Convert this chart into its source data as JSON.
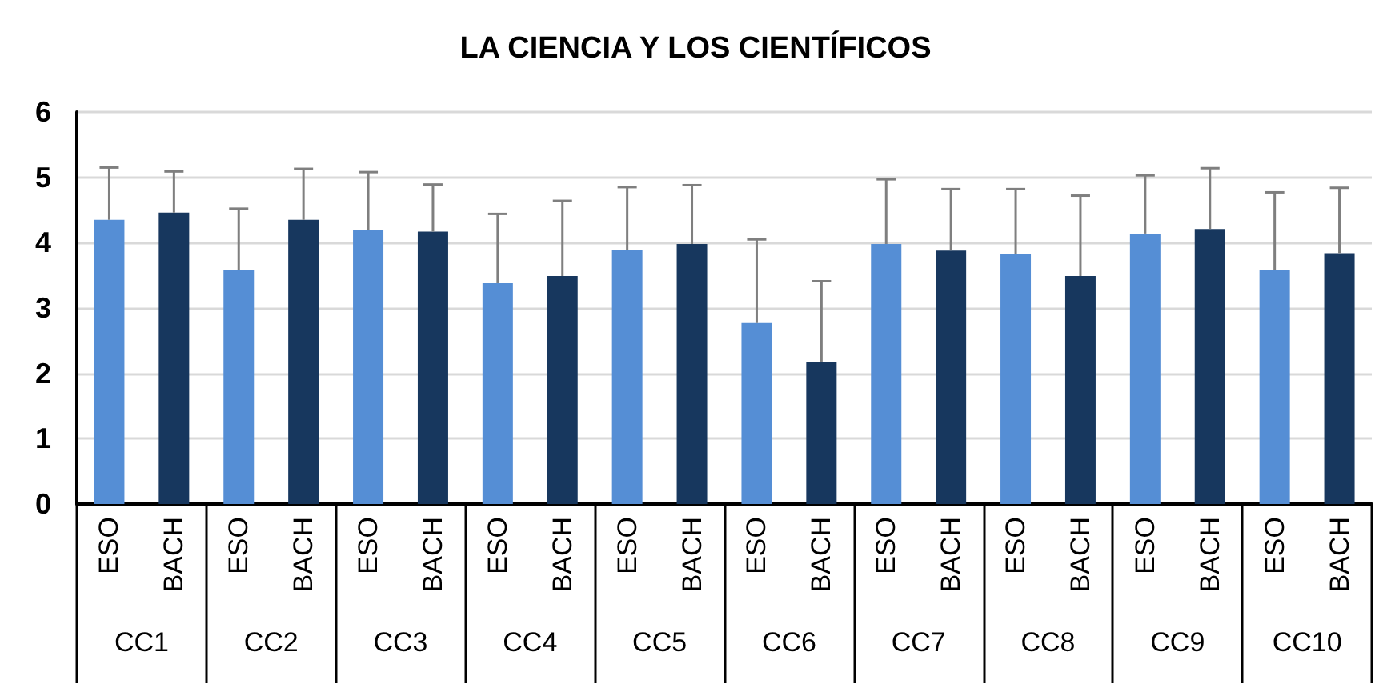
{
  "chart_data": {
    "type": "bar",
    "title": "LA CIENCIA Y LOS CIENTÍFICOS",
    "categories": [
      "CC1",
      "CC2",
      "CC3",
      "CC4",
      "CC5",
      "CC6",
      "CC7",
      "CC8",
      "CC9",
      "CC10"
    ],
    "series": [
      {
        "name": "ESO",
        "color": "#558ed5",
        "values": [
          4.35,
          3.58,
          4.19,
          3.38,
          3.89,
          2.77,
          3.98,
          3.83,
          4.14,
          3.58
        ],
        "errors": [
          [
            4.35,
            5.15
          ],
          [
            3.58,
            4.52
          ],
          [
            4.19,
            5.08
          ],
          [
            3.38,
            4.44
          ],
          [
            3.89,
            4.85
          ],
          [
            2.77,
            4.05
          ],
          [
            3.98,
            4.97
          ],
          [
            3.83,
            4.82
          ],
          [
            4.14,
            5.03
          ],
          [
            3.58,
            4.77
          ]
        ]
      },
      {
        "name": "BACH",
        "color": "#17375e",
        "values": [
          4.46,
          4.35,
          4.17,
          3.49,
          3.98,
          2.18,
          3.88,
          3.49,
          4.21,
          3.84
        ],
        "errors": [
          [
            4.46,
            5.09
          ],
          [
            4.35,
            5.13
          ],
          [
            4.17,
            4.89
          ],
          [
            3.49,
            4.64
          ],
          [
            3.98,
            4.88
          ],
          [
            2.18,
            3.41
          ],
          [
            3.88,
            4.82
          ],
          [
            3.49,
            4.72
          ],
          [
            4.21,
            5.14
          ],
          [
            3.84,
            4.84
          ]
        ]
      }
    ],
    "ylim": [
      0,
      6
    ],
    "yticks": [
      0,
      1,
      2,
      3,
      4,
      5,
      6
    ],
    "grid": "y",
    "legend": false
  }
}
